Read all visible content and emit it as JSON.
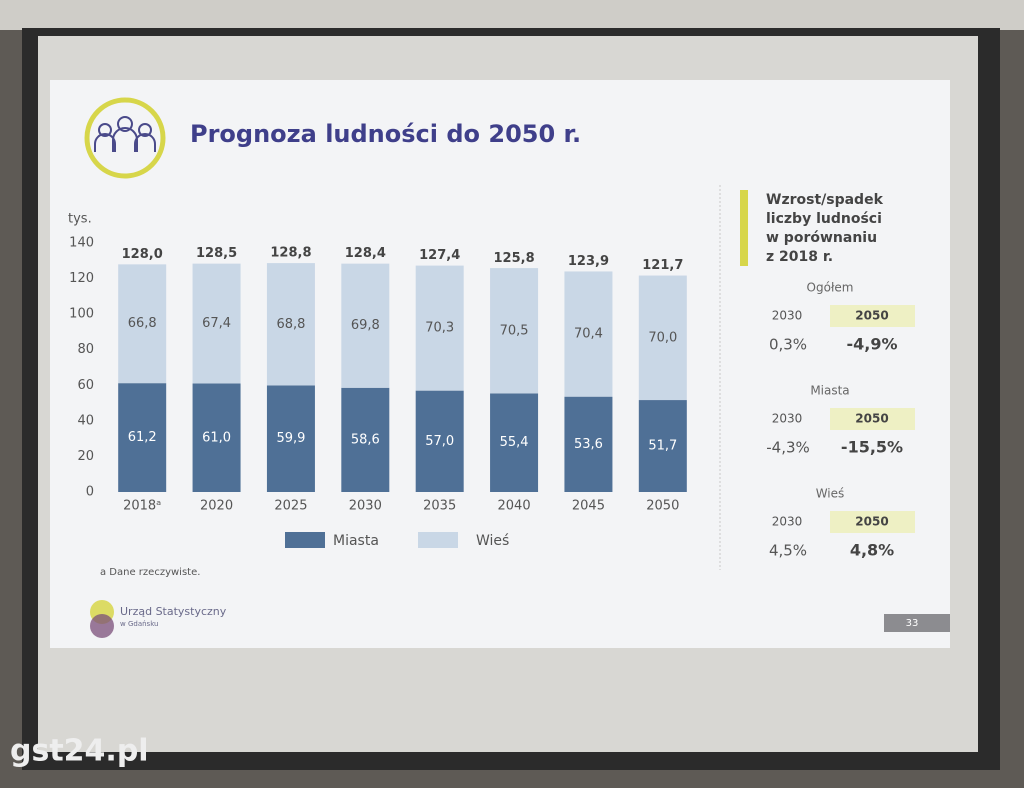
{
  "chart_data": {
    "type": "stacked-bar",
    "title": "Prognoza ludności do 2050 r.",
    "y_label": "tys.",
    "categories": [
      "2018ᵃ",
      "2020",
      "2025",
      "2030",
      "2035",
      "2040",
      "2045",
      "2050"
    ],
    "series": [
      {
        "name": "Miasta",
        "color": "#4f7096",
        "values": [
          61.2,
          61.0,
          59.9,
          58.6,
          57.0,
          55.4,
          53.6,
          51.7
        ],
        "value_labels": [
          "61,2",
          "61,0",
          "59,9",
          "58,6",
          "57,0",
          "55,4",
          "53,6",
          "51,7"
        ]
      },
      {
        "name": "Wieś",
        "color": "#c9d7e6",
        "values": [
          66.8,
          67.4,
          68.8,
          69.8,
          70.3,
          70.5,
          70.4,
          70.0
        ],
        "value_labels": [
          "66,8",
          "67,4",
          "68,8",
          "69,8",
          "70,3",
          "70,5",
          "70,4",
          "70,0"
        ]
      }
    ],
    "totals": {
      "values": [
        128.0,
        128.5,
        128.8,
        128.4,
        127.4,
        125.8,
        123.9,
        121.7
      ],
      "value_labels": [
        "128,0",
        "128,5",
        "128,8",
        "128,4",
        "127,4",
        "125,8",
        "123,9",
        "121,7"
      ]
    },
    "ylim": [
      0,
      140
    ],
    "yticks": [
      0,
      20,
      40,
      60,
      80,
      100,
      120,
      140
    ],
    "footnote": "a Dane rzeczywiste."
  },
  "panel": {
    "title_lines": [
      "Wzrost/spadek",
      "liczby ludności",
      "w porównaniu",
      "z 2018 r."
    ],
    "sections": [
      {
        "name": "Ogółem",
        "years": [
          "2030",
          "2050"
        ],
        "values": [
          "0,3%",
          "-4,9%"
        ]
      },
      {
        "name": "Miasta",
        "years": [
          "2030",
          "2050"
        ],
        "values": [
          "-4,3%",
          "-15,5%"
        ]
      },
      {
        "name": "Wieś",
        "years": [
          "2030",
          "2050"
        ],
        "values": [
          "4,5%",
          "4,8%"
        ]
      }
    ]
  },
  "footer": {
    "logo_line1": "Urząd Statystyczny",
    "logo_line2": "w Gdańsku",
    "page": "33"
  },
  "watermark": "gst24.pl"
}
